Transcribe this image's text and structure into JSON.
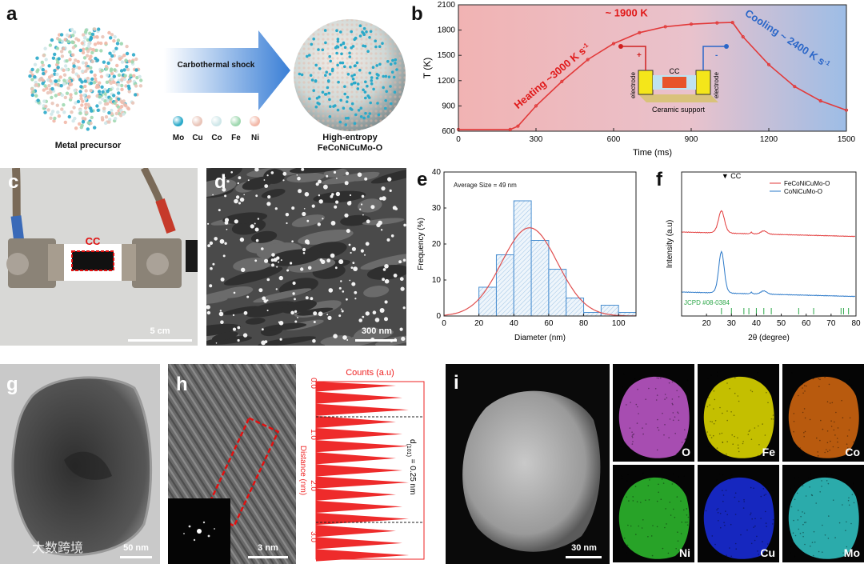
{
  "panels": {
    "a": {
      "letter": "a",
      "left_label": "Metal precursor",
      "arrow_label": "Carbothermal shock",
      "elements": [
        "Mo",
        "Cu",
        "Co",
        "Fe",
        "Ni"
      ],
      "element_colors": [
        "#2aa9c9",
        "#e9c4b8",
        "#cfe7e9",
        "#9fd8b0",
        "#f2b8a8"
      ],
      "right_label_line1": "High-entropy",
      "right_label_line2": "FeCoNiCuMo-O"
    },
    "b": {
      "letter": "b",
      "peak_label": "~ 1900 K",
      "heating_label": "Heating ~3000 K s",
      "heating_sup": "-1",
      "cooling_label": "Cooling ~ 2400 K s",
      "cooling_sup": "-1",
      "plus": "+",
      "minus": "-",
      "cc": "CC",
      "electrode": "electrode",
      "ceramic": "Ceramic support"
    },
    "c": {
      "letter": "c",
      "cc_label": "CC",
      "scale": "5 cm"
    },
    "d": {
      "letter": "d",
      "scale": "300 nm"
    },
    "e": {
      "letter": "e",
      "annotation": "Average Size = 49 nm"
    },
    "f": {
      "letter": "f",
      "cc_marker": "▼ CC",
      "jcpd": "JCPD #08-0384"
    },
    "g": {
      "letter": "g",
      "scale": "50 nm",
      "watermark": "大数跨境"
    },
    "h": {
      "letter": "h",
      "scale": "3 nm",
      "counts_label": "Counts (a.u)",
      "distance_label": "Distance (nm)",
      "d_label": "d",
      "d_sub": "(101)",
      "d_value": " = 0.25 nm",
      "ticks": [
        "0.0",
        "1.0",
        "2.0",
        "3.0"
      ]
    },
    "i": {
      "letter": "i",
      "scale": "30 nm",
      "maps": [
        "O",
        "Fe",
        "Co",
        "Ni",
        "Cu",
        "Mo"
      ],
      "map_colors": [
        "#c45bd0",
        "#e6e000",
        "#d86a10",
        "#2fc02f",
        "#1a2ee0",
        "#33c9c9"
      ]
    }
  },
  "chart_data": [
    {
      "type": "line",
      "panel": "b",
      "xlabel": "Time (ms)",
      "ylabel": "T (K)",
      "xlim": [
        0,
        1500
      ],
      "ylim": [
        600,
        2100
      ],
      "xticks": [
        "0",
        "300",
        "600",
        "900",
        "1200",
        "1500"
      ],
      "yticks": [
        "600",
        "900",
        "1200",
        "1500",
        "1800",
        "2100"
      ],
      "series": [
        {
          "color": "#e23a3a",
          "x": [
            0,
            200,
            230,
            300,
            400,
            500,
            600,
            700,
            800,
            900,
            1000,
            1060,
            1100,
            1200,
            1300,
            1400,
            1500
          ],
          "y": [
            620,
            620,
            660,
            900,
            1190,
            1450,
            1640,
            1770,
            1840,
            1870,
            1885,
            1890,
            1720,
            1390,
            1130,
            960,
            850
          ]
        }
      ]
    },
    {
      "type": "bar",
      "panel": "e",
      "xlabel": "Diameter (nm)",
      "ylabel": "Frequency (%)",
      "xlim": [
        0,
        110
      ],
      "ylim": [
        0,
        40
      ],
      "xticks": [
        "0",
        "20",
        "40",
        "60",
        "80",
        "100"
      ],
      "yticks": [
        "0",
        "10",
        "20",
        "30",
        "40"
      ],
      "bin_edges": [
        20,
        30,
        40,
        50,
        60,
        70,
        80,
        90,
        100,
        110
      ],
      "values": [
        8,
        17,
        32,
        21,
        13,
        5,
        1,
        3,
        1
      ],
      "fit_mean": 49,
      "fit_peak": 24.5,
      "fit_sigma": 16
    },
    {
      "type": "line",
      "panel": "f",
      "xlabel": "2θ (degree)",
      "ylabel": "Intensity (a.u)",
      "xlim": [
        10,
        80
      ],
      "xticks": [
        "20",
        "30",
        "40",
        "50",
        "60",
        "70",
        "80"
      ],
      "series": [
        {
          "name": "FeCoNiCuMo-O",
          "color": "#e23a3a"
        },
        {
          "name": "CoNiCuMo-O",
          "color": "#2a78c8"
        }
      ],
      "jcpd_peaks": [
        26,
        30,
        35,
        37,
        40,
        43,
        46,
        57,
        63,
        74,
        75,
        77
      ]
    }
  ]
}
